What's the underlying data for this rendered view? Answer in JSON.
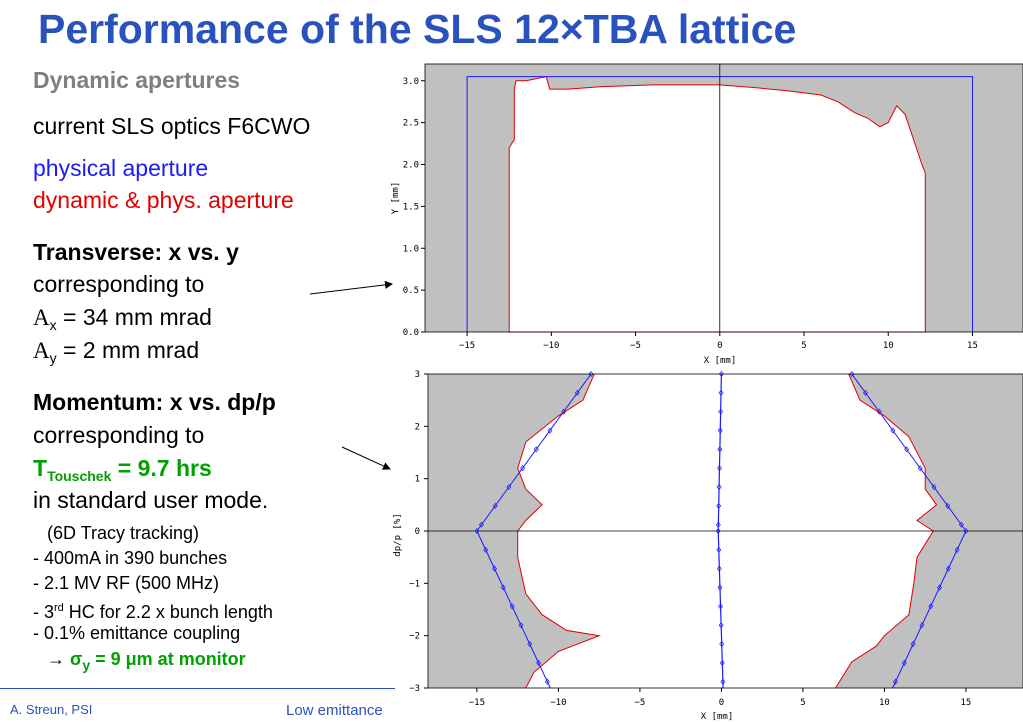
{
  "title": "Performance of the SLS 12×TBA lattice",
  "left": {
    "heading": "Dynamic apertures",
    "optics": "current SLS optics F6CWO",
    "legend_physical": "physical aperture",
    "legend_dynamic": "dynamic & phys. aperture",
    "transverse_title": "Transverse: x vs. y",
    "corresponding1": "corresponding to",
    "ax_sym": "A",
    "ax_sub": "x",
    "ax_val": " = 34 mm mrad",
    "ay_sym": "A",
    "ay_sub": "y",
    "ay_val": " = 2 mm mrad",
    "momentum_title": "Momentum: x vs. dp/p",
    "corresponding2": "corresponding to",
    "touschek_T": "T",
    "touschek_sub": "Touschek",
    "touschek_val": " = 9.7 hrs",
    "user_mode": "in standard user mode.",
    "tracy": "(6D Tracy tracking)",
    "bullet1": "-  400mA in 390 bunches",
    "bullet2": "-  2.1 MV RF (500 MHz)",
    "bullet3_pre": "-  3",
    "bullet3_sup": "rd",
    "bullet3_post": " HC for 2.2 x bunch length",
    "bullet4": "-  0.1% emittance coupling",
    "sigma_arrow": "→ ",
    "sigma_sym": "σ",
    "sigma_sub": "y",
    "sigma_val": " = 9 μm at monitor"
  },
  "footer": {
    "author": "A. Streun, PSI",
    "mid": "Low emittance"
  },
  "colors": {
    "title": "#2a52be",
    "physical": "#1a1aff",
    "dynamic": "#e00000",
    "highlight": "#00a000",
    "outside": "#c0c0c0"
  },
  "chart_data": [
    {
      "type": "area",
      "name": "transverse",
      "xlabel": "X [mm]",
      "ylabel": "Y [mm]",
      "xlim": [
        -17.5,
        18
      ],
      "ylim": [
        0,
        3.2
      ],
      "xticks": [
        -15,
        -10,
        -5,
        0,
        5,
        10,
        15
      ],
      "yticks": [
        0.0,
        0.5,
        1.0,
        1.5,
        2.0,
        2.5,
        3.0
      ],
      "physical_aperture": {
        "x": [
          -15,
          15
        ],
        "y_max": 3.05
      },
      "dynamic_aperture": [
        [
          -12.5,
          0
        ],
        [
          -12.5,
          2.2
        ],
        [
          -12.2,
          2.3
        ],
        [
          -12.2,
          2.9
        ],
        [
          -12.1,
          3.0
        ],
        [
          -11.5,
          3.0
        ],
        [
          -10.3,
          3.05
        ],
        [
          -10.1,
          2.9
        ],
        [
          -9.0,
          2.9
        ],
        [
          -7.0,
          2.93
        ],
        [
          -4.0,
          2.95
        ],
        [
          0.0,
          2.95
        ],
        [
          2.0,
          2.92
        ],
        [
          4.0,
          2.88
        ],
        [
          6.0,
          2.83
        ],
        [
          7.0,
          2.75
        ],
        [
          8.0,
          2.62
        ],
        [
          8.8,
          2.55
        ],
        [
          9.5,
          2.45
        ],
        [
          10.0,
          2.5
        ],
        [
          10.5,
          2.7
        ],
        [
          11.0,
          2.6
        ],
        [
          11.5,
          2.3
        ],
        [
          12.0,
          2.0
        ],
        [
          12.2,
          1.9
        ],
        [
          12.2,
          0
        ]
      ]
    },
    {
      "type": "line",
      "name": "momentum",
      "xlabel": "X [mm]",
      "ylabel": "dp/p [%]",
      "xlim": [
        -18,
        18.5
      ],
      "ylim": [
        -3,
        3
      ],
      "xticks": [
        -15,
        -10,
        -5,
        0,
        5,
        10,
        15
      ],
      "yticks": [
        -3,
        -2,
        -1,
        0,
        1,
        2,
        3
      ],
      "physical_aperture_right": [
        [
          8,
          3
        ],
        [
          15,
          0
        ],
        [
          10.5,
          -3
        ]
      ],
      "physical_aperture_left": [
        [
          -8,
          3
        ],
        [
          -15,
          0
        ],
        [
          -10.5,
          -3
        ]
      ],
      "dynamic_aperture_right": [
        [
          7.8,
          3.0
        ],
        [
          8.5,
          2.5
        ],
        [
          10.0,
          2.2
        ],
        [
          11.5,
          1.8
        ],
        [
          12.5,
          1.2
        ],
        [
          12.5,
          0.8
        ],
        [
          13.2,
          0.5
        ],
        [
          12.0,
          0.2
        ],
        [
          13.0,
          0.0
        ],
        [
          12.0,
          -0.5
        ],
        [
          11.8,
          -1.0
        ],
        [
          11.5,
          -1.6
        ],
        [
          10.0,
          -2.0
        ],
        [
          9.5,
          -2.2
        ],
        [
          8.0,
          -2.5
        ],
        [
          7.0,
          -3.0
        ]
      ],
      "dynamic_aperture_left": [
        [
          -7.8,
          3.0
        ],
        [
          -8.5,
          2.5
        ],
        [
          -10.0,
          2.2
        ],
        [
          -12.0,
          1.7
        ],
        [
          -12.5,
          1.2
        ],
        [
          -12.0,
          0.8
        ],
        [
          -11.0,
          0.5
        ],
        [
          -12.0,
          0.2
        ],
        [
          -12.5,
          0.0
        ],
        [
          -12.5,
          -0.5
        ],
        [
          -12.0,
          -1.2
        ],
        [
          -11.0,
          -1.6
        ],
        [
          -9.5,
          -1.9
        ],
        [
          -7.5,
          -2.0
        ],
        [
          -10.0,
          -2.3
        ],
        [
          -11.5,
          -2.7
        ],
        [
          -12.0,
          -3.0
        ]
      ],
      "closed_orbit": [
        [
          0.0,
          3.0
        ],
        [
          -0.2,
          0.0
        ],
        [
          0.1,
          -3.0
        ]
      ]
    }
  ]
}
